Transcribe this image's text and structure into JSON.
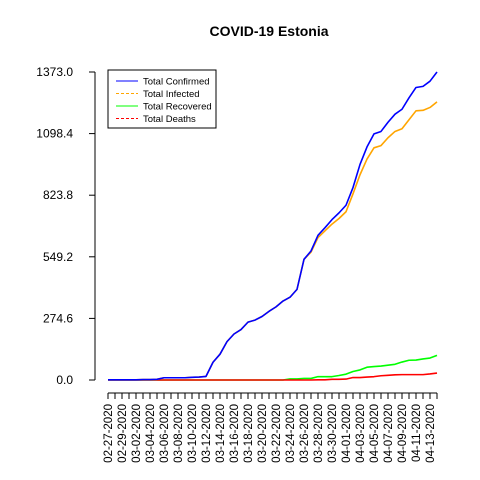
{
  "chart_data": {
    "type": "line",
    "title": "COVID-19 Estonia",
    "xlabel": "",
    "ylabel": "",
    "y_ticks": [
      "0.0",
      "274.6",
      "549.2",
      "823.8",
      "1098.4",
      "1373.0"
    ],
    "y_tick_values": [
      0,
      274.6,
      549.2,
      823.8,
      1098.4,
      1373.0
    ],
    "ylim": [
      0,
      1373.0
    ],
    "x_tick_labels": [
      "02-27-2020",
      "02-29-2020",
      "03-02-2020",
      "03-04-2020",
      "03-06-2020",
      "03-08-2020",
      "03-10-2020",
      "03-12-2020",
      "03-14-2020",
      "03-16-2020",
      "03-18-2020",
      "03-20-2020",
      "03-22-2020",
      "03-24-2020",
      "03-26-2020",
      "03-28-2020",
      "03-30-2020",
      "04-01-2020",
      "04-03-2020",
      "04-05-2020",
      "04-07-2020",
      "04-09-2020",
      "04-11-2020",
      "04-13-2020"
    ],
    "x": [
      "02-27-2020",
      "02-28-2020",
      "02-29-2020",
      "03-01-2020",
      "03-02-2020",
      "03-03-2020",
      "03-04-2020",
      "03-05-2020",
      "03-06-2020",
      "03-07-2020",
      "03-08-2020",
      "03-09-2020",
      "03-10-2020",
      "03-11-2020",
      "03-12-2020",
      "03-13-2020",
      "03-14-2020",
      "03-15-2020",
      "03-16-2020",
      "03-17-2020",
      "03-18-2020",
      "03-19-2020",
      "03-20-2020",
      "03-21-2020",
      "03-22-2020",
      "03-23-2020",
      "03-24-2020",
      "03-25-2020",
      "03-26-2020",
      "03-27-2020",
      "03-28-2020",
      "03-29-2020",
      "03-30-2020",
      "03-31-2020",
      "04-01-2020",
      "04-02-2020",
      "04-03-2020",
      "04-04-2020",
      "04-05-2020",
      "04-06-2020",
      "04-07-2020",
      "04-08-2020",
      "04-09-2020",
      "04-10-2020",
      "04-11-2020",
      "04-12-2020",
      "04-13-2020",
      "04-14-2020"
    ],
    "legend_position": "top-left",
    "grid": false,
    "series": [
      {
        "name": "Total Confirmed",
        "color": "#0000ff",
        "dash": "solid",
        "values": [
          1,
          1,
          1,
          1,
          1,
          2,
          2,
          3,
          10,
          10,
          10,
          10,
          12,
          13,
          16,
          79,
          115,
          171,
          205,
          225,
          258,
          267,
          283,
          306,
          326,
          352,
          369,
          404,
          538,
          575,
          645,
          679,
          715,
          745,
          779,
          858,
          961,
          1039,
          1097,
          1108,
          1149,
          1185,
          1207,
          1258,
          1304,
          1309,
          1332,
          1373
        ]
      },
      {
        "name": "Total Infected",
        "color": "#ffa500",
        "dash": "dashed",
        "values": [
          1,
          1,
          1,
          1,
          1,
          2,
          2,
          3,
          10,
          10,
          10,
          10,
          12,
          13,
          16,
          79,
          115,
          171,
          205,
          225,
          258,
          267,
          283,
          306,
          326,
          352,
          369,
          404,
          538,
          575,
          645,
          679,
          715,
          745,
          779,
          858,
          961,
          1039,
          1097,
          1108,
          1149,
          1185,
          1207,
          1258,
          1304,
          1309,
          1332,
          1373
        ]
      },
      {
        "name": "Total Recovered",
        "color": "#00ff00",
        "dash": "solid",
        "values": [
          0,
          0,
          0,
          0,
          0,
          0,
          0,
          0,
          0,
          0,
          0,
          0,
          0,
          0,
          0,
          0,
          0,
          0,
          0,
          0,
          0,
          0,
          0,
          0,
          0,
          0,
          0,
          0,
          0,
          0,
          0,
          0,
          0,
          0,
          0,
          0,
          0,
          0,
          0,
          0,
          0,
          0,
          0,
          0,
          0,
          0,
          0,
          0
        ]
      },
      {
        "name": "Total Deaths",
        "color": "#ff0000",
        "dash": "dashed",
        "values": [
          0,
          0,
          0,
          0,
          0,
          0,
          0,
          0,
          0,
          0,
          0,
          0,
          0,
          0,
          0,
          0,
          0,
          0,
          0,
          0,
          0,
          0,
          0,
          0,
          0,
          0,
          0,
          0,
          0,
          0,
          0,
          0,
          0,
          0,
          0,
          0,
          0,
          0,
          0,
          0,
          0,
          0,
          0,
          0,
          0,
          0,
          0,
          0
        ]
      }
    ]
  }
}
